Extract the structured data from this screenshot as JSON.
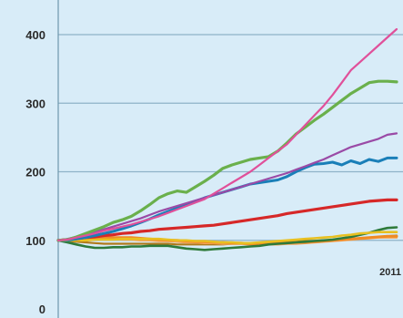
{
  "chart_data": {
    "type": "line",
    "title": "",
    "xlabel": "",
    "ylabel": "",
    "ylim": [
      0,
      420
    ],
    "yticks": [
      0,
      100,
      200,
      300,
      400
    ],
    "year_label": "2011",
    "grid": "horizontal",
    "x_points": 38,
    "series": [
      {
        "color": "#e0509a",
        "width": 2.2,
        "values": [
          100,
          101,
          104,
          107,
          110,
          114,
          117,
          120,
          123,
          127,
          131,
          135,
          140,
          145,
          150,
          155,
          160,
          168,
          176,
          184,
          192,
          200,
          210,
          220,
          230,
          240,
          254,
          268,
          282,
          296,
          312,
          330,
          348,
          360,
          372,
          384,
          396,
          408
        ]
      },
      {
        "color": "#6ab04c",
        "width": 3.2,
        "values": [
          100,
          101,
          105,
          110,
          115,
          120,
          126,
          130,
          135,
          143,
          152,
          162,
          168,
          172,
          170,
          178,
          186,
          195,
          205,
          210,
          214,
          218,
          220,
          222,
          230,
          242,
          255,
          265,
          275,
          284,
          294,
          304,
          314,
          322,
          330,
          332,
          332,
          331
        ]
      },
      {
        "color": "#9a4aa6",
        "width": 2.2,
        "values": [
          100,
          102,
          105,
          108,
          112,
          116,
          120,
          124,
          128,
          132,
          137,
          142,
          146,
          150,
          154,
          158,
          162,
          166,
          170,
          174,
          178,
          182,
          186,
          190,
          194,
          198,
          203,
          208,
          213,
          218,
          224,
          230,
          236,
          240,
          244,
          248,
          254,
          256
        ]
      },
      {
        "color": "#1a7fb8",
        "width": 3.0,
        "values": [
          100,
          100,
          102,
          104,
          107,
          110,
          113,
          117,
          121,
          126,
          131,
          137,
          142,
          147,
          152,
          157,
          162,
          166,
          170,
          174,
          178,
          182,
          184,
          186,
          188,
          193,
          200,
          206,
          211,
          212,
          214,
          210,
          216,
          212,
          218,
          215,
          220,
          220
        ]
      },
      {
        "color": "#d62828",
        "width": 3.2,
        "values": [
          100,
          101,
          102,
          104,
          105,
          107,
          108,
          110,
          111,
          113,
          114,
          116,
          117,
          118,
          119,
          120,
          121,
          122,
          124,
          126,
          128,
          130,
          132,
          134,
          136,
          139,
          141,
          143,
          145,
          147,
          149,
          151,
          153,
          155,
          157,
          158,
          159,
          159
        ]
      },
      {
        "color": "#e8c020",
        "width": 2.6,
        "values": [
          100,
          100,
          100,
          100,
          101,
          101,
          101,
          102,
          102,
          102,
          102,
          102,
          101,
          100,
          100,
          99,
          99,
          98,
          97,
          97,
          96,
          96,
          97,
          98,
          99,
          100,
          101,
          102,
          103,
          104,
          105,
          107,
          108,
          110,
          111,
          112,
          112,
          112
        ]
      },
      {
        "color": "#2e7a3a",
        "width": 2.6,
        "values": [
          100,
          97,
          94,
          91,
          89,
          89,
          90,
          90,
          91,
          91,
          92,
          92,
          92,
          90,
          88,
          87,
          86,
          87,
          88,
          89,
          90,
          91,
          92,
          94,
          95,
          96,
          97,
          98,
          99,
          100,
          101,
          103,
          105,
          108,
          111,
          115,
          118,
          119
        ]
      },
      {
        "color": "#f08a24",
        "width": 3.0,
        "values": [
          100,
          101,
          102,
          103,
          104,
          104,
          104,
          104,
          104,
          103,
          102,
          101,
          100,
          100,
          99,
          98,
          98,
          97,
          97,
          96,
          96,
          95,
          95,
          95,
          96,
          96,
          97,
          97,
          98,
          99,
          100,
          101,
          102,
          103,
          104,
          105,
          106,
          106
        ]
      },
      {
        "color": "#f2a65a",
        "width": 2.4,
        "values": [
          100,
          100,
          101,
          101,
          102,
          102,
          102,
          101,
          101,
          100,
          100,
          99,
          99,
          98,
          97,
          97,
          96,
          96,
          95,
          95,
          95,
          94,
          94,
          94,
          94,
          95,
          95,
          96,
          97,
          98,
          99,
          100,
          101,
          102,
          103,
          104,
          104,
          104
        ]
      },
      {
        "color": "#b07a1a",
        "width": 2.2,
        "values": [
          100,
          99,
          98,
          97,
          96,
          95,
          95,
          95,
          95,
          95,
          95,
          95,
          95,
          94,
          94,
          94,
          94,
          94,
          94,
          95,
          95,
          96,
          96,
          97,
          97,
          98,
          98,
          99,
          99,
          100,
          100,
          101,
          102,
          103,
          104,
          105,
          106,
          107
        ]
      }
    ]
  }
}
